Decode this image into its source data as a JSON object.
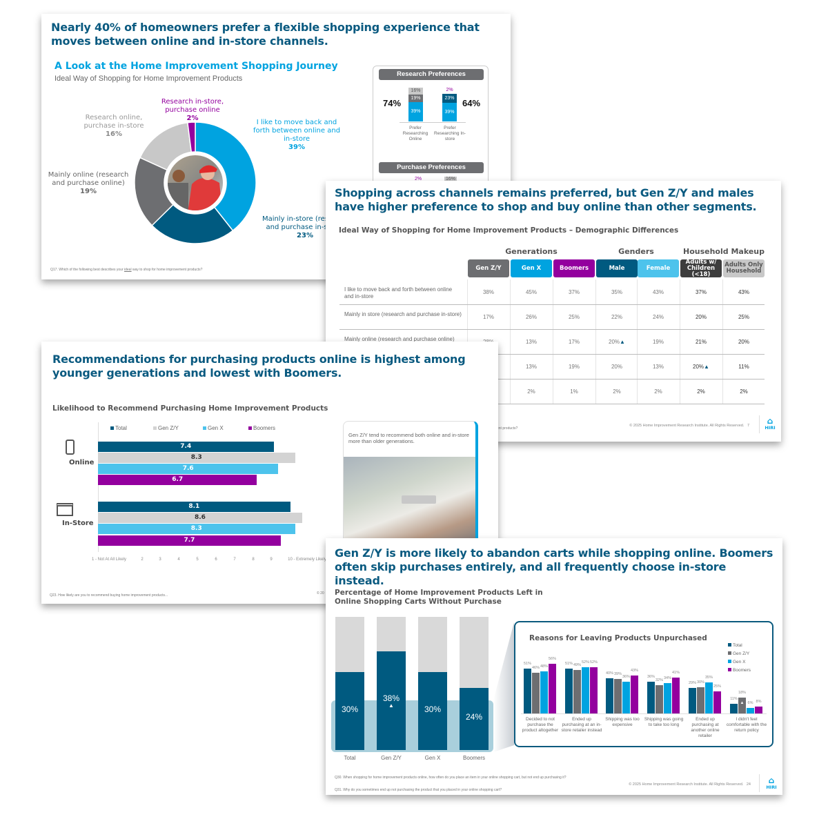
{
  "colors": {
    "dark_teal": "#005a80",
    "light_blue": "#00a3e0",
    "sky": "#4dc3ec",
    "purple": "#93009e",
    "grey": "#6d6e71",
    "light_grey": "#c8c8c8",
    "headline": "#0a5a80"
  },
  "slide1": {
    "title": "Nearly 40% of homeowners prefer a flexible shopping experience that moves between online and in-store channels.",
    "subtitle": "A Look at the Home Improvement Shopping Journey",
    "caption": "Ideal Way of Shopping for Home Improvement Products",
    "footnote_prefix": "Q17. Which of the following best describes your ",
    "footnote_ideal": "ideal",
    "footnote_suffix": " way to shop for home improvement products?",
    "research_box": {
      "header": "Research Preferences",
      "left_total": "74%",
      "right_total": "64%",
      "left_label": "Prefer Researching Online",
      "right_label": "Prefer Researching In-store",
      "left_segments": [
        "16%",
        "19%",
        "39%"
      ],
      "right_top": "2%",
      "right_segments": [
        "23%",
        "39%"
      ],
      "purchase_header": "Purchase Preferences",
      "purchase_partial": [
        "2%",
        "16%"
      ]
    }
  },
  "slide2": {
    "title": "Shopping across channels remains preferred, but Gen Z/Y and males have higher preference to shop and buy online than other segments.",
    "subtitle": "Ideal Way of Shopping for Home Improvement Products – Demographic Differences",
    "groups": [
      "Generations",
      "Genders",
      "Household Makeup"
    ],
    "columns": [
      {
        "label": "Gen Z/Y",
        "color": "#6d6e71"
      },
      {
        "label": "Gen X",
        "color": "#00a3e0"
      },
      {
        "label": "Boomers",
        "color": "#93009e"
      },
      {
        "label": "Male",
        "color": "#005a80"
      },
      {
        "label": "Female",
        "color": "#4dc3ec"
      },
      {
        "label": "Adults w/ Children (<18)",
        "color": "#3d3d3d"
      },
      {
        "label": "Adults Only Household",
        "color": "#c8c8c8"
      }
    ],
    "rows": [
      {
        "label": "I like to move back and forth between online and in-store",
        "values": [
          "38%",
          "45%",
          "37%",
          "35%",
          "43%",
          "37%",
          "43%"
        ]
      },
      {
        "label": "Mainly in store (research and purchase in-store)",
        "values": [
          "17%",
          "26%",
          "25%",
          "22%",
          "24%",
          "20%",
          "25%"
        ]
      },
      {
        "label": "Mainly online (research and purchase online)",
        "values": [
          "28%",
          "13%",
          "17%",
          "20%",
          "19%",
          "21%",
          "20%"
        ],
        "flag_col": 3
      },
      {
        "label": "",
        "values": [
          "",
          "13%",
          "19%",
          "20%",
          "13%",
          "20%",
          "11%"
        ],
        "flag_col": 5
      },
      {
        "label": "",
        "values": [
          "",
          "2%",
          "1%",
          "2%",
          "2%",
          "2%",
          "2%"
        ]
      }
    ],
    "footnote_tail": "ent products?",
    "copyright": "© 2025 Home Improvement Research Institute. All Rights Reserved.",
    "page": "7",
    "logo": "HIRI"
  },
  "slide3": {
    "title": "Recommendations for purchasing products online is highest among younger generations and lowest with Boomers.",
    "footnote": "Q23. How likely are you to recommend buying home improvement products...",
    "copyright_partial": "© 20",
    "card_text": "Gen Z/Y tend to recommend both online and in-store more than older generations."
  },
  "slide4": {
    "title": "Gen Z/Y is more likely to abandon carts while shopping online. Boomers often skip purchases entirely, and all frequently choose in-store instead.",
    "footnote_q30": "Q30. When shopping for home improvement products online, how often do you place an item in your online shopping cart, but not end up purchasing it?",
    "footnote_q31": "Q31. Why do you sometimes end up not purchasing the product that you placed in your online shopping cart?",
    "copyright": "© 2025 Home Improvement Research Institute. All Rights Reserved.",
    "page": "24",
    "logo": "HIRI"
  },
  "chart_data": [
    {
      "type": "pie",
      "donut": true,
      "slices": [
        {
          "label": "I like to move back and forth between online and in-store",
          "value": 39,
          "display": "39%",
          "color": "#00a3e0"
        },
        {
          "label": "Mainly in-store (research and purchase in-store)",
          "value": 23,
          "display": "23%",
          "color": "#005a80"
        },
        {
          "label": "Mainly online (research and purchase online)",
          "value": 19,
          "display": "19%",
          "color": "#6d6e71"
        },
        {
          "label": "Research online, purchase in-store",
          "value": 16,
          "display": "16%",
          "color": "#c8c8c8"
        },
        {
          "label": "Research in-store, purchase online",
          "value": 2,
          "display": "2%",
          "color": "#93009e"
        }
      ]
    },
    {
      "type": "bar",
      "orientation": "horizontal",
      "title": "Likelihood to Recommend Purchasing Home Improvement Products",
      "categories": [
        "Online",
        "In-Store"
      ],
      "series": [
        {
          "name": "Total",
          "color": "#005a80",
          "values": [
            7.4,
            8.1
          ]
        },
        {
          "name": "Gen Z/Y",
          "color": "#d3d3d3",
          "values": [
            8.3,
            8.6
          ]
        },
        {
          "name": "Gen X",
          "color": "#4dc3ec",
          "values": [
            7.6,
            8.3
          ]
        },
        {
          "name": "Boomers",
          "color": "#93009e",
          "values": [
            6.7,
            7.7
          ]
        }
      ],
      "xlim": [
        0,
        10
      ],
      "ticks": [
        "1 - Not At All Likely",
        "2",
        "3",
        "4",
        "5",
        "6",
        "7",
        "8",
        "9",
        "10 - Extremely Likely"
      ],
      "legend": "top"
    },
    {
      "type": "bar",
      "title": "Percentage of Home Improvement Products Left in Online Shopping Carts Without Purchase",
      "categories": [
        "Total",
        "Gen Z/Y",
        "Gen X",
        "Boomers"
      ],
      "values": [
        30,
        38,
        30,
        24
      ],
      "labels": [
        "30%",
        "38%",
        "30%",
        "24%"
      ],
      "flag_index": 1,
      "ylim": [
        0,
        100
      ]
    },
    {
      "type": "bar",
      "title": "Reasons for Leaving Products Unpurchased",
      "categories": [
        "Decided to not purchase the product altogether",
        "Ended up purchasing at an in-store retailer instead",
        "Shipping was too expensive",
        "Shipping was going to take too long",
        "Ended up purchasing at another online retailer",
        "I didn't feel comfortable with the return policy"
      ],
      "series": [
        {
          "name": "Total",
          "color": "#005a80",
          "values": [
            51,
            51,
            40,
            36,
            29,
            11
          ]
        },
        {
          "name": "Gen Z/Y",
          "color": "#6d6e71",
          "values": [
            46,
            49,
            39,
            32,
            30,
            18
          ]
        },
        {
          "name": "Gen X",
          "color": "#00a3e0",
          "values": [
            48,
            52,
            36,
            34,
            35,
            6
          ]
        },
        {
          "name": "Boomers",
          "color": "#93009e",
          "values": [
            56,
            52,
            43,
            41,
            25,
            8
          ]
        }
      ],
      "flag": {
        "series": 1,
        "category": 5
      },
      "legend": "right"
    }
  ]
}
